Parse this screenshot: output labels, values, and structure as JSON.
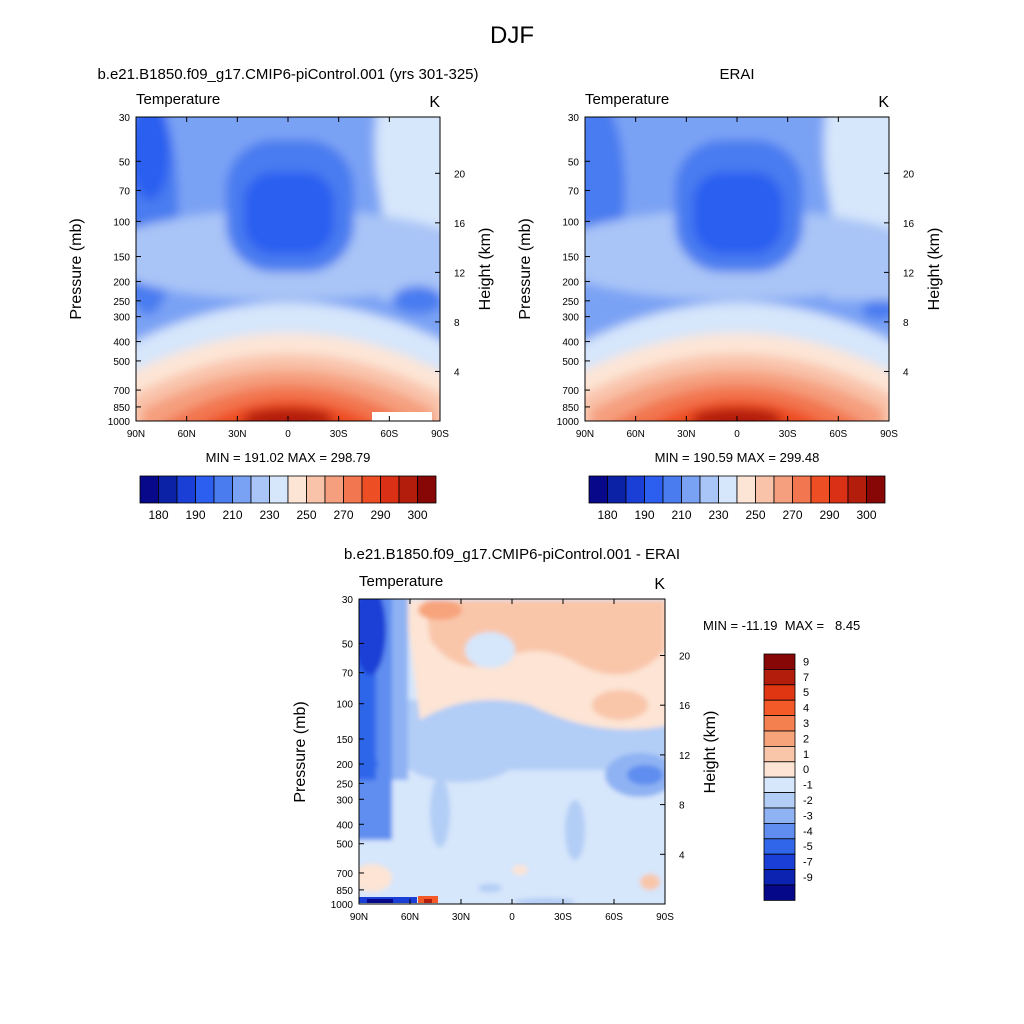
{
  "figure": {
    "title": "DJF"
  },
  "chart_data": [
    {
      "type": "heatmap",
      "title": "b.e21.B1850.f09_g17.CMIP6-piControl.001 (yrs 301-325)",
      "left_label": "Temperature",
      "units": "K",
      "ylabel": "Pressure (mb)",
      "ylabel_right": "Height (km)",
      "x_ticks": [
        "90N",
        "60N",
        "30N",
        "0",
        "30S",
        "60S",
        "90S"
      ],
      "y_ticks": [
        "30",
        "50",
        "70",
        "100",
        "150",
        "200",
        "250",
        "300",
        "400",
        "500",
        "700",
        "850",
        "1000"
      ],
      "height_ticks": [
        "20",
        "16",
        "12",
        "8",
        "4"
      ],
      "stats": "MIN = 191.02  MAX = 298.79",
      "colorbar_labels": [
        "180",
        "190",
        "210",
        "230",
        "250",
        "270",
        "290",
        "300"
      ],
      "x_range": [
        90,
        -90
      ],
      "y_range_mb": [
        30,
        1000
      ],
      "min": 191.02,
      "max": 298.79
    },
    {
      "type": "heatmap",
      "title": "ERAI",
      "left_label": "Temperature",
      "units": "K",
      "ylabel": "Pressure (mb)",
      "ylabel_right": "Height (km)",
      "x_ticks": [
        "90N",
        "60N",
        "30N",
        "0",
        "30S",
        "60S",
        "90S"
      ],
      "y_ticks": [
        "30",
        "50",
        "70",
        "100",
        "150",
        "200",
        "250",
        "300",
        "400",
        "500",
        "700",
        "850",
        "1000"
      ],
      "height_ticks": [
        "20",
        "16",
        "12",
        "8",
        "4"
      ],
      "stats": "MIN = 190.59  MAX = 299.48",
      "colorbar_labels": [
        "180",
        "190",
        "210",
        "230",
        "250",
        "270",
        "290",
        "300"
      ],
      "x_range": [
        90,
        -90
      ],
      "y_range_mb": [
        30,
        1000
      ],
      "min": 190.59,
      "max": 299.48
    },
    {
      "type": "heatmap",
      "title": "b.e21.B1850.f09_g17.CMIP6-piControl.001 - ERAI",
      "left_label": "Temperature",
      "units": "K",
      "ylabel": "Pressure (mb)",
      "ylabel_right": "Height (km)",
      "x_ticks": [
        "90N",
        "60N",
        "30N",
        "0",
        "30S",
        "60S",
        "90S"
      ],
      "y_ticks": [
        "30",
        "50",
        "70",
        "100",
        "150",
        "200",
        "250",
        "300",
        "400",
        "500",
        "700",
        "850",
        "1000"
      ],
      "height_ticks": [
        "20",
        "16",
        "12",
        "8",
        "4"
      ],
      "stats": "MIN = -11.19  MAX =   8.45",
      "colorbar_labels": [
        "9",
        "7",
        "5",
        "4",
        "3",
        "2",
        "1",
        "0",
        "-1",
        "-2",
        "-3",
        "-4",
        "-5",
        "-7",
        "-9"
      ],
      "x_range": [
        90,
        -90
      ],
      "y_range_mb": [
        30,
        1000
      ],
      "min": -11.19,
      "max": 8.45
    }
  ],
  "palettes": {
    "absolute": [
      "#08088a",
      "#0c22a6",
      "#1a3fd6",
      "#2c5ef0",
      "#4a7cf0",
      "#7aa2f4",
      "#a9c4f6",
      "#d6e6fb",
      "#fde5d6",
      "#f9c3aa",
      "#f59f7e",
      "#f27650",
      "#ee4e24",
      "#d93016",
      "#b31d0c",
      "#870707"
    ],
    "difference": [
      "#870707",
      "#b31d0c",
      "#e03612",
      "#f35a28",
      "#f5804f",
      "#f7a47b",
      "#f9c6aa",
      "#fde4d4",
      "#d6e6fb",
      "#b2cdf6",
      "#8fb2f3",
      "#5f8ef0",
      "#2f66ea",
      "#1a3fd6",
      "#0c22b0",
      "#06088a"
    ]
  }
}
